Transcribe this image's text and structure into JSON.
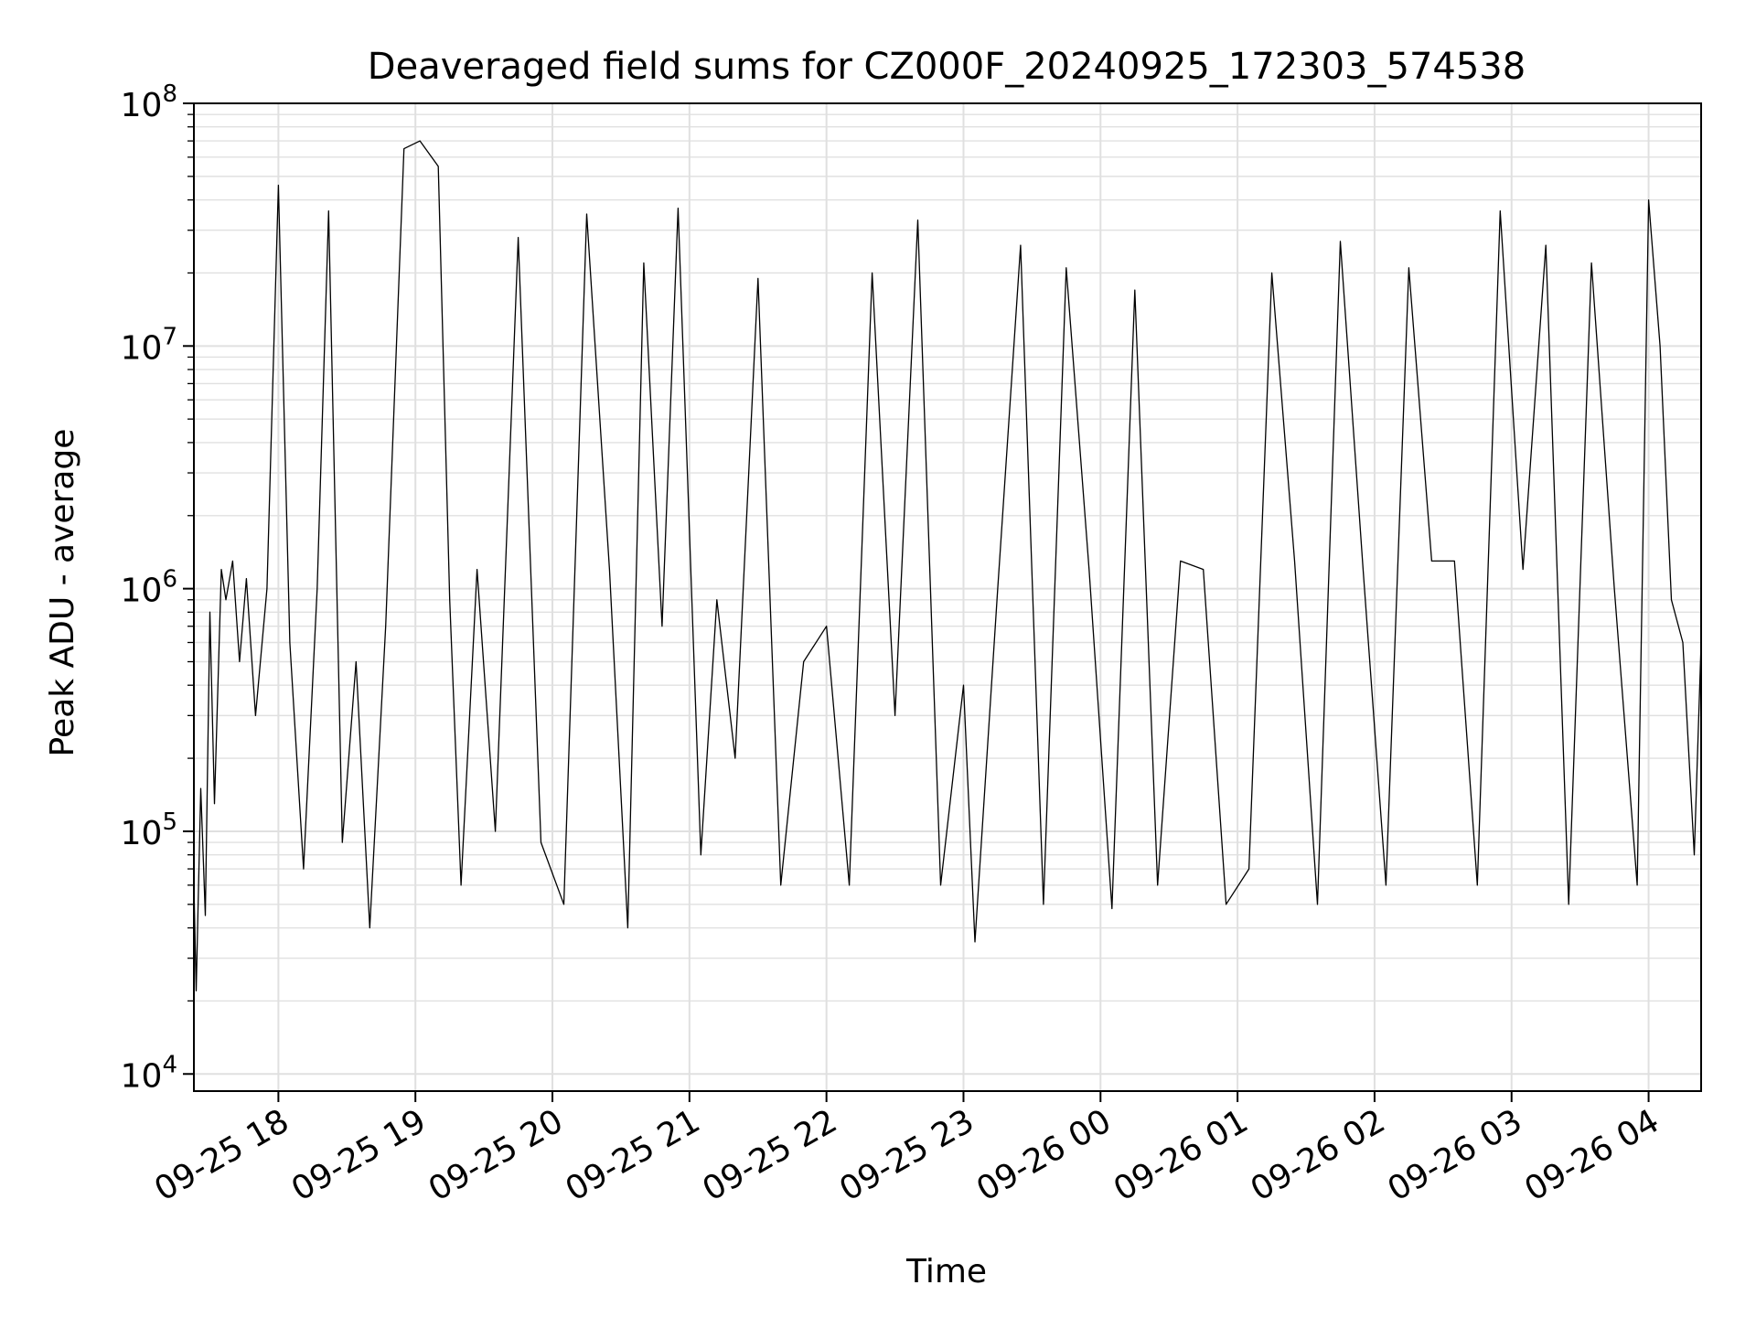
{
  "chart_data": {
    "type": "line",
    "title": "Deaveraged field sums for CZ000F_20240925_172303_574538",
    "xlabel": "Time",
    "ylabel": "Peak ADU - average",
    "yscale": "log",
    "ylim": [
      8500,
      100000000
    ],
    "xlim": [
      "2024-09-25 17:23",
      "2024-09-26 04:23"
    ],
    "grid": true,
    "minor_grid": true,
    "line_color": "#000000",
    "grid_color": "#e0e0e0",
    "x_ticks": [
      {
        "value": "2024-09-25 18:00",
        "label": "09-25 18"
      },
      {
        "value": "2024-09-25 19:00",
        "label": "09-25 19"
      },
      {
        "value": "2024-09-25 20:00",
        "label": "09-25 20"
      },
      {
        "value": "2024-09-25 21:00",
        "label": "09-25 21"
      },
      {
        "value": "2024-09-25 22:00",
        "label": "09-25 22"
      },
      {
        "value": "2024-09-25 23:00",
        "label": "09-25 23"
      },
      {
        "value": "2024-09-26 00:00",
        "label": "09-26 00"
      },
      {
        "value": "2024-09-26 01:00",
        "label": "09-26 01"
      },
      {
        "value": "2024-09-26 02:00",
        "label": "09-26 02"
      },
      {
        "value": "2024-09-26 03:00",
        "label": "09-26 03"
      },
      {
        "value": "2024-09-26 04:00",
        "label": "09-26 04"
      }
    ],
    "y_ticks": [
      {
        "value": 10000,
        "base": "10",
        "exp": "4"
      },
      {
        "value": 100000,
        "base": "10",
        "exp": "5"
      },
      {
        "value": 1000000,
        "base": "10",
        "exp": "6"
      },
      {
        "value": 10000000,
        "base": "10",
        "exp": "7"
      },
      {
        "value": 100000000,
        "base": "10",
        "exp": "8"
      }
    ],
    "series": [
      {
        "x": [
          "2024-09-25 17:23",
          "2024-09-25 17:24",
          "2024-09-25 17:26",
          "2024-09-25 17:28",
          "2024-09-25 17:30",
          "2024-09-25 17:32",
          "2024-09-25 17:35",
          "2024-09-25 17:37",
          "2024-09-25 17:40",
          "2024-09-25 17:43",
          "2024-09-25 17:46",
          "2024-09-25 17:50",
          "2024-09-25 17:55",
          "2024-09-25 18:00",
          "2024-09-25 18:05",
          "2024-09-25 18:11",
          "2024-09-25 18:17",
          "2024-09-25 18:22",
          "2024-09-25 18:28",
          "2024-09-25 18:34",
          "2024-09-25 18:40",
          "2024-09-25 18:47",
          "2024-09-25 18:55",
          "2024-09-25 19:02",
          "2024-09-25 19:10",
          "2024-09-25 19:15",
          "2024-09-25 19:20",
          "2024-09-25 19:27",
          "2024-09-25 19:35",
          "2024-09-25 19:45",
          "2024-09-25 19:55",
          "2024-09-25 20:05",
          "2024-09-25 20:15",
          "2024-09-25 20:25",
          "2024-09-25 20:33",
          "2024-09-25 20:40",
          "2024-09-25 20:48",
          "2024-09-25 20:55",
          "2024-09-25 21:05",
          "2024-09-25 21:12",
          "2024-09-25 21:20",
          "2024-09-25 21:30",
          "2024-09-25 21:40",
          "2024-09-25 21:50",
          "2024-09-25 22:00",
          "2024-09-25 22:10",
          "2024-09-25 22:20",
          "2024-09-25 22:30",
          "2024-09-25 22:40",
          "2024-09-25 22:50",
          "2024-09-25 23:00",
          "2024-09-25 23:05",
          "2024-09-25 23:15",
          "2024-09-25 23:25",
          "2024-09-25 23:35",
          "2024-09-25 23:45",
          "2024-09-25 23:55",
          "2024-09-26 00:05",
          "2024-09-26 00:15",
          "2024-09-26 00:25",
          "2024-09-26 00:35",
          "2024-09-26 00:45",
          "2024-09-26 00:55",
          "2024-09-26 01:05",
          "2024-09-26 01:15",
          "2024-09-26 01:25",
          "2024-09-26 01:35",
          "2024-09-26 01:45",
          "2024-09-26 01:55",
          "2024-09-26 02:05",
          "2024-09-26 02:15",
          "2024-09-26 02:25",
          "2024-09-26 02:35",
          "2024-09-26 02:45",
          "2024-09-26 02:55",
          "2024-09-26 03:05",
          "2024-09-26 03:15",
          "2024-09-26 03:25",
          "2024-09-26 03:35",
          "2024-09-26 03:45",
          "2024-09-26 03:55",
          "2024-09-26 04:00",
          "2024-09-26 04:05",
          "2024-09-26 04:10",
          "2024-09-26 04:15",
          "2024-09-26 04:20",
          "2024-09-26 04:23"
        ],
        "y": [
          60000,
          22000,
          150000,
          45000,
          800000,
          130000,
          1200000,
          900000,
          1300000,
          500000,
          1100000,
          300000,
          1000000,
          46000000,
          600000,
          70000,
          1000000,
          36000000,
          90000,
          500000,
          40000,
          700000,
          65000000,
          70000000,
          55000000,
          900000,
          60000,
          1200000,
          100000,
          28000000,
          90000,
          50000,
          35000000,
          1200000,
          40000,
          22000000,
          700000,
          37000000,
          80000,
          900000,
          200000,
          19000000,
          60000,
          500000,
          700000,
          60000,
          20000000,
          300000,
          33000000,
          60000,
          400000,
          35000,
          1000000,
          26000000,
          50000,
          21000000,
          1200000,
          48000,
          17000000,
          60000,
          1300000,
          1200000,
          50000,
          70000,
          20000000,
          1300000,
          50000,
          27000000,
          1200000,
          60000,
          21000000,
          1300000,
          1300000,
          60000,
          36000000,
          1200000,
          26000000,
          50000,
          22000000,
          1000000,
          60000,
          40000000,
          10000000,
          900000,
          600000,
          80000,
          600000
        ]
      }
    ]
  }
}
